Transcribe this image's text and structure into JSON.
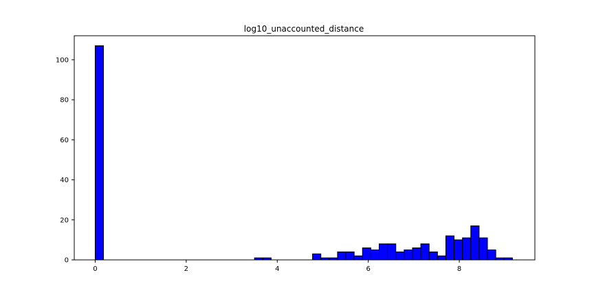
{
  "chart_data": {
    "type": "bar",
    "title": "log10_unaccounted_distance",
    "xlabel": "",
    "ylabel": "",
    "xlim": [
      -0.46,
      9.66
    ],
    "ylim": [
      0,
      112
    ],
    "xticks": [
      0,
      2,
      4,
      6,
      8
    ],
    "yticks": [
      0,
      20,
      40,
      60,
      80,
      100
    ],
    "grid": false,
    "bar_color": "#0000ff",
    "edge_color": "#000000",
    "bins": [
      {
        "x0": 0.0,
        "x1": 0.183,
        "count": 107
      },
      {
        "x0": 3.5,
        "x1": 3.683,
        "count": 1
      },
      {
        "x0": 3.683,
        "x1": 3.866,
        "count": 1
      },
      {
        "x0": 4.775,
        "x1": 4.958,
        "count": 3
      },
      {
        "x0": 4.958,
        "x1": 5.141,
        "count": 1
      },
      {
        "x0": 5.141,
        "x1": 5.324,
        "count": 1
      },
      {
        "x0": 5.324,
        "x1": 5.507,
        "count": 4
      },
      {
        "x0": 5.507,
        "x1": 5.69,
        "count": 4
      },
      {
        "x0": 5.69,
        "x1": 5.873,
        "count": 2
      },
      {
        "x0": 5.873,
        "x1": 6.056,
        "count": 6
      },
      {
        "x0": 6.056,
        "x1": 6.239,
        "count": 5
      },
      {
        "x0": 6.239,
        "x1": 6.422,
        "count": 8
      },
      {
        "x0": 6.422,
        "x1": 6.605,
        "count": 8
      },
      {
        "x0": 6.605,
        "x1": 6.788,
        "count": 4
      },
      {
        "x0": 6.788,
        "x1": 6.971,
        "count": 5
      },
      {
        "x0": 6.971,
        "x1": 7.154,
        "count": 6
      },
      {
        "x0": 7.154,
        "x1": 7.337,
        "count": 8
      },
      {
        "x0": 7.337,
        "x1": 7.52,
        "count": 4
      },
      {
        "x0": 7.52,
        "x1": 7.703,
        "count": 2
      },
      {
        "x0": 7.703,
        "x1": 7.886,
        "count": 12
      },
      {
        "x0": 7.886,
        "x1": 8.069,
        "count": 10
      },
      {
        "x0": 8.069,
        "x1": 8.252,
        "count": 11
      },
      {
        "x0": 8.252,
        "x1": 8.435,
        "count": 17
      },
      {
        "x0": 8.435,
        "x1": 8.618,
        "count": 11
      },
      {
        "x0": 8.618,
        "x1": 8.801,
        "count": 5
      },
      {
        "x0": 8.801,
        "x1": 8.984,
        "count": 1
      },
      {
        "x0": 8.984,
        "x1": 9.167,
        "count": 1
      }
    ]
  }
}
